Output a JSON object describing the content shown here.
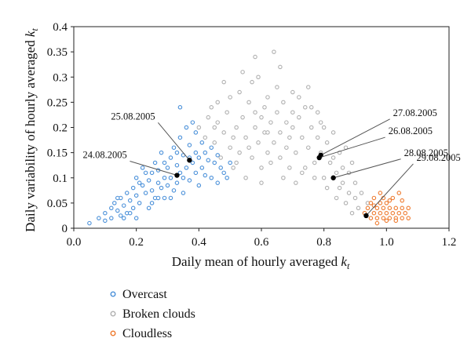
{
  "chart_data": {
    "type": "scatter",
    "xlabel_main": "Daily mean of hourly averaged ",
    "xlabel_sub": "k",
    "xlabel_subscript": "t",
    "ylabel_main": "Daily variability of hourly averaged ",
    "ylabel_sub": "k",
    "ylabel_subscript": "t",
    "xlim": [
      0,
      1.2
    ],
    "ylim": [
      0,
      0.4
    ],
    "xticks": [
      "0.0",
      "0.2",
      "0.4",
      "0.6",
      "0.8",
      "1.0",
      "1.2"
    ],
    "yticks": [
      "0",
      "0.05",
      "0.1",
      "0.15",
      "0.2",
      "0.25",
      "0.3",
      "0.35",
      "0.4"
    ],
    "xtick_values": [
      0,
      0.2,
      0.4,
      0.6,
      0.8,
      1.0,
      1.2
    ],
    "ytick_values": [
      0,
      0.05,
      0.1,
      0.15,
      0.2,
      0.25,
      0.3,
      0.35,
      0.4
    ],
    "grid": false,
    "legend_position": "bottom-left",
    "series": [
      {
        "name": "Overcast",
        "color": "#4a90d9",
        "points": [
          [
            0.05,
            0.01
          ],
          [
            0.08,
            0.02
          ],
          [
            0.1,
            0.015
          ],
          [
            0.1,
            0.03
          ],
          [
            0.12,
            0.04
          ],
          [
            0.12,
            0.02
          ],
          [
            0.13,
            0.05
          ],
          [
            0.14,
            0.035
          ],
          [
            0.15,
            0.06
          ],
          [
            0.15,
            0.025
          ],
          [
            0.16,
            0.045
          ],
          [
            0.17,
            0.07
          ],
          [
            0.17,
            0.03
          ],
          [
            0.18,
            0.055
          ],
          [
            0.19,
            0.08
          ],
          [
            0.19,
            0.04
          ],
          [
            0.2,
            0.065
          ],
          [
            0.2,
            0.1
          ],
          [
            0.21,
            0.05
          ],
          [
            0.22,
            0.085
          ],
          [
            0.22,
            0.12
          ],
          [
            0.23,
            0.07
          ],
          [
            0.24,
            0.095
          ],
          [
            0.24,
            0.04
          ],
          [
            0.25,
            0.11
          ],
          [
            0.25,
            0.075
          ],
          [
            0.26,
            0.06
          ],
          [
            0.26,
            0.13
          ],
          [
            0.27,
            0.09
          ],
          [
            0.27,
            0.115
          ],
          [
            0.28,
            0.08
          ],
          [
            0.28,
            0.15
          ],
          [
            0.29,
            0.1
          ],
          [
            0.29,
            0.06
          ],
          [
            0.3,
            0.12
          ],
          [
            0.3,
            0.085
          ],
          [
            0.31,
            0.14
          ],
          [
            0.31,
            0.1
          ],
          [
            0.32,
            0.16
          ],
          [
            0.32,
            0.075
          ],
          [
            0.33,
            0.125
          ],
          [
            0.33,
            0.09
          ],
          [
            0.34,
            0.18
          ],
          [
            0.34,
            0.11
          ],
          [
            0.35,
            0.145
          ],
          [
            0.35,
            0.07
          ],
          [
            0.36,
            0.2
          ],
          [
            0.36,
            0.12
          ],
          [
            0.37,
            0.095
          ],
          [
            0.37,
            0.165
          ],
          [
            0.38,
            0.13
          ],
          [
            0.38,
            0.21
          ],
          [
            0.39,
            0.11
          ],
          [
            0.39,
            0.15
          ],
          [
            0.4,
            0.14
          ],
          [
            0.4,
            0.085
          ],
          [
            0.41,
            0.17
          ],
          [
            0.41,
            0.12
          ],
          [
            0.42,
            0.105
          ],
          [
            0.42,
            0.15
          ],
          [
            0.43,
            0.135
          ],
          [
            0.44,
            0.16
          ],
          [
            0.44,
            0.1
          ],
          [
            0.45,
            0.13
          ],
          [
            0.46,
            0.145
          ],
          [
            0.46,
            0.09
          ],
          [
            0.47,
            0.12
          ],
          [
            0.48,
            0.11
          ],
          [
            0.49,
            0.1
          ],
          [
            0.5,
            0.13
          ],
          [
            0.14,
            0.06
          ],
          [
            0.16,
            0.02
          ],
          [
            0.18,
            0.03
          ],
          [
            0.2,
            0.02
          ],
          [
            0.21,
            0.09
          ],
          [
            0.23,
            0.11
          ],
          [
            0.25,
            0.05
          ],
          [
            0.27,
            0.06
          ],
          [
            0.29,
            0.13
          ],
          [
            0.31,
            0.06
          ],
          [
            0.33,
            0.15
          ],
          [
            0.35,
            0.1
          ],
          [
            0.37,
            0.14
          ],
          [
            0.39,
            0.19
          ],
          [
            0.34,
            0.24
          ]
        ]
      },
      {
        "name": "Broken clouds",
        "color": "#b0b0b0",
        "points": [
          [
            0.4,
            0.2
          ],
          [
            0.42,
            0.18
          ],
          [
            0.43,
            0.22
          ],
          [
            0.45,
            0.17
          ],
          [
            0.46,
            0.21
          ],
          [
            0.47,
            0.14
          ],
          [
            0.48,
            0.19
          ],
          [
            0.5,
            0.16
          ],
          [
            0.5,
            0.26
          ],
          [
            0.51,
            0.12
          ],
          [
            0.52,
            0.2
          ],
          [
            0.53,
            0.15
          ],
          [
            0.54,
            0.22
          ],
          [
            0.55,
            0.18
          ],
          [
            0.55,
            0.1
          ],
          [
            0.56,
            0.25
          ],
          [
            0.57,
            0.14
          ],
          [
            0.58,
            0.2
          ],
          [
            0.58,
            0.34
          ],
          [
            0.59,
            0.17
          ],
          [
            0.6,
            0.22
          ],
          [
            0.6,
            0.12
          ],
          [
            0.61,
            0.19
          ],
          [
            0.62,
            0.26
          ],
          [
            0.62,
            0.15
          ],
          [
            0.63,
            0.21
          ],
          [
            0.64,
            0.17
          ],
          [
            0.64,
            0.35
          ],
          [
            0.65,
            0.23
          ],
          [
            0.66,
            0.14
          ],
          [
            0.66,
            0.19
          ],
          [
            0.67,
            0.25
          ],
          [
            0.68,
            0.16
          ],
          [
            0.68,
            0.21
          ],
          [
            0.69,
            0.12
          ],
          [
            0.7,
            0.2
          ],
          [
            0.7,
            0.27
          ],
          [
            0.71,
            0.15
          ],
          [
            0.72,
            0.22
          ],
          [
            0.73,
            0.18
          ],
          [
            0.73,
            0.11
          ],
          [
            0.74,
            0.24
          ],
          [
            0.75,
            0.16
          ],
          [
            0.75,
            0.28
          ],
          [
            0.76,
            0.2
          ],
          [
            0.77,
            0.13
          ],
          [
            0.78,
            0.18
          ],
          [
            0.78,
            0.23
          ],
          [
            0.79,
            0.15
          ],
          [
            0.8,
            0.2
          ],
          [
            0.8,
            0.1
          ],
          [
            0.81,
            0.17
          ],
          [
            0.82,
            0.13
          ],
          [
            0.83,
            0.19
          ],
          [
            0.84,
            0.11
          ],
          [
            0.85,
            0.15
          ],
          [
            0.85,
            0.08
          ],
          [
            0.86,
            0.12
          ],
          [
            0.87,
            0.16
          ],
          [
            0.88,
            0.07
          ],
          [
            0.88,
            0.11
          ],
          [
            0.89,
            0.13
          ],
          [
            0.9,
            0.06
          ],
          [
            0.9,
            0.09
          ],
          [
            0.91,
            0.04
          ],
          [
            0.92,
            0.07
          ],
          [
            0.93,
            0.03
          ],
          [
            0.94,
            0.05
          ],
          [
            0.44,
            0.24
          ],
          [
            0.49,
            0.23
          ],
          [
            0.53,
            0.27
          ],
          [
            0.57,
            0.29
          ],
          [
            0.61,
            0.24
          ],
          [
            0.65,
            0.28
          ],
          [
            0.69,
            0.18
          ],
          [
            0.72,
            0.26
          ],
          [
            0.76,
            0.24
          ],
          [
            0.79,
            0.21
          ],
          [
            0.83,
            0.14
          ],
          [
            0.86,
            0.09
          ],
          [
            0.52,
            0.13
          ],
          [
            0.56,
            0.16
          ],
          [
            0.6,
            0.09
          ],
          [
            0.63,
            0.13
          ],
          [
            0.67,
            0.1
          ],
          [
            0.71,
            0.09
          ],
          [
            0.74,
            0.12
          ],
          [
            0.77,
            0.1
          ],
          [
            0.81,
            0.08
          ],
          [
            0.84,
            0.06
          ],
          [
            0.87,
            0.05
          ],
          [
            0.89,
            0.03
          ],
          [
            0.46,
            0.25
          ],
          [
            0.48,
            0.29
          ],
          [
            0.54,
            0.31
          ],
          [
            0.59,
            0.3
          ],
          [
            0.66,
            0.32
          ],
          [
            0.7,
            0.23
          ],
          [
            0.62,
            0.19
          ],
          [
            0.58,
            0.23
          ],
          [
            0.51,
            0.18
          ],
          [
            0.45,
            0.2
          ]
        ]
      },
      {
        "name": "Cloudless",
        "color": "#ee7a2e",
        "points": [
          [
            0.93,
            0.03
          ],
          [
            0.94,
            0.04
          ],
          [
            0.95,
            0.02
          ],
          [
            0.95,
            0.05
          ],
          [
            0.96,
            0.03
          ],
          [
            0.96,
            0.06
          ],
          [
            0.97,
            0.02
          ],
          [
            0.97,
            0.04
          ],
          [
            0.98,
            0.03
          ],
          [
            0.98,
            0.05
          ],
          [
            0.98,
            0.07
          ],
          [
            0.99,
            0.02
          ],
          [
            0.99,
            0.04
          ],
          [
            1.0,
            0.03
          ],
          [
            1.0,
            0.05
          ],
          [
            1.01,
            0.02
          ],
          [
            1.01,
            0.04
          ],
          [
            1.02,
            0.03
          ],
          [
            1.02,
            0.06
          ],
          [
            1.03,
            0.02
          ],
          [
            1.03,
            0.04
          ],
          [
            1.04,
            0.03
          ],
          [
            1.04,
            0.07
          ],
          [
            1.05,
            0.02
          ],
          [
            1.05,
            0.04
          ],
          [
            1.06,
            0.03
          ],
          [
            1.07,
            0.02
          ],
          [
            1.07,
            0.04
          ],
          [
            0.97,
            0.01
          ],
          [
            1.0,
            0.015
          ],
          [
            1.03,
            0.015
          ],
          [
            0.99,
            0.06
          ],
          [
            1.01,
            0.055
          ],
          [
            0.96,
            0.045
          ],
          [
            1.05,
            0.055
          ]
        ]
      }
    ],
    "highlighted_points": [
      {
        "label": "24.08.2005",
        "x": 0.33,
        "y": 0.105
      },
      {
        "label": "25.08.2005",
        "x": 0.37,
        "y": 0.135
      },
      {
        "label": "27.08.2005",
        "x": 0.79,
        "y": 0.145
      },
      {
        "label": "26.08.2005",
        "x": 0.785,
        "y": 0.14
      },
      {
        "label": "28.08.2005",
        "x": 0.83,
        "y": 0.1
      },
      {
        "label": "29.08.2005",
        "x": 0.935,
        "y": 0.025
      }
    ]
  }
}
